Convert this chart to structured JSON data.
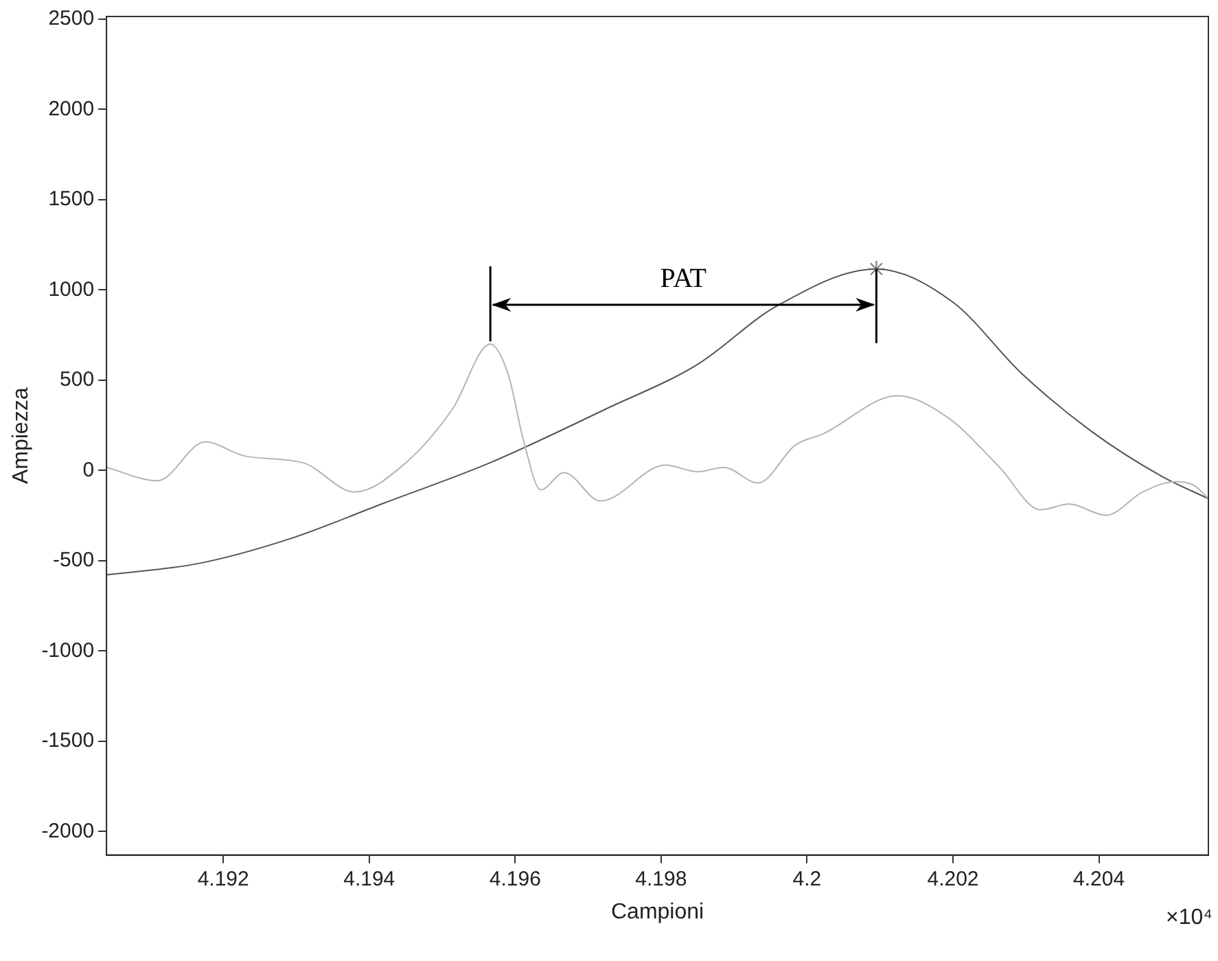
{
  "chart_data": {
    "type": "line",
    "xlabel": "Campioni",
    "ylabel": "Ampiezza",
    "xlim": [
      4.1904,
      4.2055
    ],
    "ylim": [
      -2130,
      2515
    ],
    "xticks": [
      4.192,
      4.194,
      4.196,
      4.198,
      4.2,
      4.202,
      4.204
    ],
    "yticks": [
      -2000,
      -1500,
      -1000,
      -500,
      0,
      500,
      1000,
      1500,
      2000,
      2500
    ],
    "grid": false,
    "legend": false,
    "marker": "none",
    "line_style": "solid",
    "annotations": [
      "×10⁴",
      "PAT"
    ],
    "series": [
      {
        "color": "#b4b4b4",
        "x": [
          4.1904,
          4.1911,
          4.19175,
          4.1923,
          4.1931,
          4.1938,
          4.1945,
          4.19514,
          4.19566,
          4.1959,
          4.19613,
          4.19635,
          4.19667,
          4.19717,
          4.19806,
          4.1985,
          4.19886,
          4.19933,
          4.19984,
          4.20022,
          4.20124,
          4.20194,
          4.20264,
          4.2032,
          4.20359,
          4.2041,
          4.2046,
          4.20505,
          4.2053,
          4.2055
        ],
        "values": [
          17,
          -57,
          158,
          80,
          42,
          -119,
          42,
          340,
          700,
          538,
          141,
          -107,
          -12,
          -169,
          30,
          -7,
          17,
          -69,
          141,
          203,
          414,
          290,
          17,
          -218,
          -186,
          -248,
          -119,
          -62,
          -82,
          -156
        ]
      },
      {
        "color": "#555555",
        "x": [
          4.1904,
          4.19165,
          4.1929,
          4.1942,
          4.19565,
          4.19724,
          4.1985,
          4.19958,
          4.20095,
          4.20199,
          4.20294,
          4.2039,
          4.20486,
          4.2055
        ],
        "values": [
          -578,
          -516,
          -380,
          -181,
          42,
          340,
          588,
          910,
          1116,
          935,
          538,
          216,
          -32,
          -156
        ]
      },
      {
        "type": "scatter",
        "marker": "cross",
        "color": "#777777",
        "x": [
          4.20095
        ],
        "values": [
          1116
        ]
      }
    ]
  }
}
